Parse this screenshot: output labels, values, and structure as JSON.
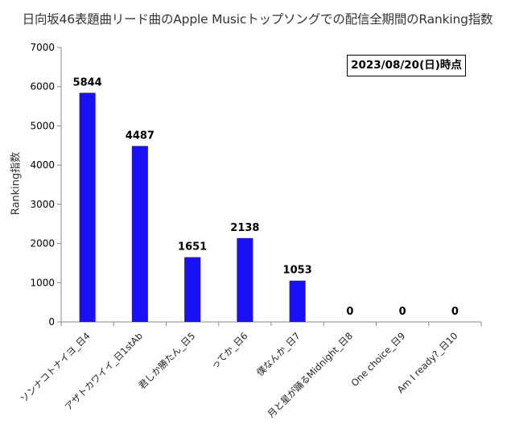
{
  "chart_data": {
    "type": "bar",
    "title": "日向坂46表題曲リード曲のApple Musicトップソングでの配信全期間のRanking指数",
    "xlabel": "",
    "ylabel": "Ranking指数",
    "annotation": "2023/08/20(日)時点",
    "ylim": [
      0,
      7000
    ],
    "yticks": [
      0,
      1000,
      2000,
      3000,
      4000,
      5000,
      6000,
      7000
    ],
    "categories": [
      "ソンナコトナイヨ_日4",
      "アザトカワイイ_日1stAb",
      "君しか勝たん_日5",
      "ってか_日6",
      "僕なんか_日7",
      "月と星が踊るMidnight_日8",
      "One choice_日9",
      "Am I ready?_日10"
    ],
    "values": [
      5844,
      4487,
      1651,
      2138,
      1053,
      0,
      0,
      0
    ],
    "bar_color": "#1a10f5",
    "grid": false,
    "legend": "none"
  }
}
